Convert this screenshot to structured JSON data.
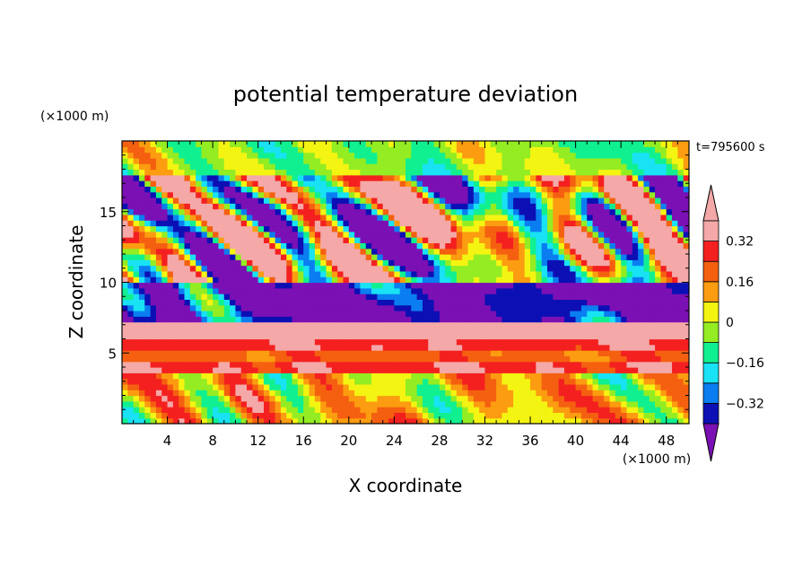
{
  "chart_data": {
    "type": "heatmap",
    "title": "potential temperature deviation",
    "xlabel": "X coordinate",
    "ylabel": "Z coordinate",
    "x_unit": "(×1000 m)",
    "y_unit": "(×1000 m)",
    "time_label": "t=795600 s",
    "xlim": [
      0,
      50
    ],
    "ylim": [
      0,
      20
    ],
    "x_ticks": [
      4,
      8,
      12,
      16,
      20,
      24,
      28,
      32,
      36,
      40,
      44,
      48
    ],
    "y_ticks": [
      5,
      10,
      15
    ],
    "x_ticks_minor": [
      1,
      2,
      3,
      5,
      6,
      7,
      9,
      10,
      11,
      13,
      14,
      15,
      17,
      18,
      19,
      21,
      22,
      23,
      25,
      26,
      27,
      29,
      30,
      31,
      33,
      34,
      35,
      37,
      38,
      39,
      41,
      42,
      43,
      45,
      46,
      47,
      49
    ],
    "y_ticks_minor": [
      1,
      2,
      3,
      4,
      6,
      7,
      8,
      9,
      11,
      12,
      13,
      14,
      16,
      17,
      18,
      19
    ],
    "colorbar": {
      "levels": [
        -0.4,
        -0.32,
        -0.24,
        -0.16,
        -0.08,
        0,
        0.08,
        0.16,
        0.24,
        0.32,
        0.4
      ],
      "labels": [
        "0.32",
        "0.16",
        "0",
        "−0.16",
        "−0.32"
      ],
      "label_values": [
        0.32,
        0.16,
        0,
        -0.16,
        -0.32
      ],
      "colors": [
        "#7b10b4",
        "#0c10b4",
        "#0a7ef0",
        "#18e2f4",
        "#10f090",
        "#94ec22",
        "#f4f412",
        "#fc9c10",
        "#f46010",
        "#f42020",
        "#f4a8a8"
      ],
      "extend": "both"
    },
    "layers": [
      {
        "z": [
          0,
          3.5
        ],
        "value": 0.08
      },
      {
        "z": [
          3.5,
          4.4
        ],
        "value": 0.3
      },
      {
        "z": [
          4.4,
          5.2
        ],
        "value": 0.2
      },
      {
        "z": [
          5.2,
          6.2
        ],
        "value": 0.3
      },
      {
        "z": [
          6.2,
          7.2
        ],
        "value": 0.45
      },
      {
        "z": [
          7.2,
          10
        ],
        "value": -0.45
      },
      {
        "z": [
          10,
          17.5
        ],
        "value": 0.0
      },
      {
        "z": [
          17.5,
          20
        ],
        "value": -0.04
      }
    ]
  }
}
